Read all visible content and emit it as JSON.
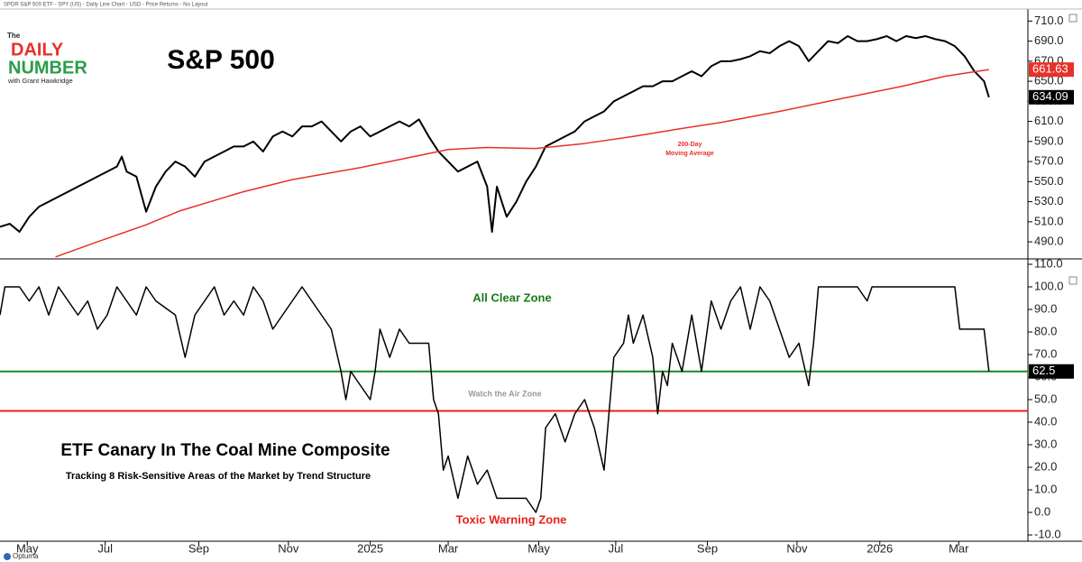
{
  "header": "SPDR S&P 500 ETF - SPY (US) - Daily Line Chart - USD - Price Returns - No Layout",
  "logo": {
    "top": "The",
    "line1": "DAILY",
    "line2": "NUMBER",
    "byline": "with Grant Hawkridge"
  },
  "footer": "Optuma",
  "chart_data": [
    {
      "type": "line",
      "title": "S&P 500",
      "annotations": [
        {
          "text": "200-Day",
          "color": "#e8302a"
        },
        {
          "text": "Moving Average",
          "color": "#e8302a"
        }
      ],
      "xlim": [
        0,
        105.5
      ],
      "ylim": [
        473,
        722
      ],
      "yticks": [
        {
          "value": 710,
          "label": "710.0"
        },
        {
          "value": 690,
          "label": "690.0"
        },
        {
          "value": 670,
          "label": "670.0"
        },
        {
          "value": 650,
          "label": "650.0"
        },
        {
          "value": 630,
          "label": "630.0"
        },
        {
          "value": 610,
          "label": "610.0"
        },
        {
          "value": 590,
          "label": "590.0"
        },
        {
          "value": 570,
          "label": "570.0"
        },
        {
          "value": 550,
          "label": "550.0"
        },
        {
          "value": 530,
          "label": "530.0"
        },
        {
          "value": 510,
          "label": "510.0"
        },
        {
          "value": 490,
          "label": "490.0"
        }
      ],
      "series": [
        {
          "name": "SPY",
          "color": "#000000",
          "x": [
            0,
            1,
            2,
            3,
            4,
            5,
            6,
            7,
            8,
            9,
            10,
            11,
            12,
            12.5,
            13,
            14,
            15,
            16,
            17,
            18,
            19,
            20,
            21,
            22,
            23,
            24,
            25,
            26,
            27,
            28,
            29,
            30,
            31,
            32,
            33,
            34,
            35,
            36,
            37,
            38,
            39,
            40,
            41,
            42,
            43,
            44,
            45,
            46,
            47,
            48,
            49,
            50,
            50.5,
            51,
            52,
            53,
            54,
            55,
            56,
            57,
            58,
            59,
            60,
            61,
            62,
            63,
            64,
            65,
            66,
            67,
            68,
            69,
            70,
            71,
            72,
            73,
            74,
            75,
            76,
            77,
            78,
            79,
            80,
            81,
            82,
            83,
            84,
            85,
            86,
            87,
            88,
            89,
            90,
            91,
            92,
            93,
            94,
            95,
            96,
            97,
            98,
            99,
            100,
            101,
            101.5
          ],
          "values": [
            505,
            508,
            500,
            515,
            525,
            530,
            535,
            540,
            545,
            550,
            555,
            560,
            565,
            575,
            560,
            555,
            520,
            545,
            560,
            570,
            565,
            555,
            570,
            575,
            580,
            585,
            585,
            590,
            580,
            595,
            600,
            595,
            605,
            605,
            610,
            600,
            590,
            600,
            605,
            595,
            600,
            605,
            610,
            605,
            612,
            595,
            580,
            570,
            560,
            565,
            570,
            545,
            500,
            545,
            515,
            530,
            550,
            565,
            585,
            590,
            595,
            600,
            610,
            615,
            620,
            630,
            635,
            640,
            645,
            645,
            650,
            650,
            655,
            660,
            655,
            665,
            670,
            670,
            672,
            675,
            680,
            678,
            685,
            690,
            685,
            670,
            680,
            690,
            688,
            695,
            690,
            690,
            692,
            695,
            690,
            695,
            693,
            695,
            692,
            690,
            685,
            675,
            660,
            650,
            634.09
          ]
        },
        {
          "name": "200-Day Moving Average",
          "color": "#e8302a",
          "x": [
            5.7,
            10,
            15,
            18.5,
            25,
            30,
            37,
            42,
            46,
            50,
            55,
            60,
            65,
            70,
            74,
            80,
            86,
            92.6,
            97,
            101.5
          ],
          "values": [
            475,
            490,
            507,
            521,
            540,
            552,
            564,
            574,
            582,
            584,
            583,
            588,
            595,
            603,
            609,
            620,
            632,
            645,
            655,
            661.63
          ]
        }
      ]
    },
    {
      "type": "line",
      "title": "ETF Canary In The Coal Mine Composite",
      "subtitle": "Tracking 8 Risk-Sensitive Areas of the Market by Trend Structure",
      "annotations": [
        {
          "text": "All Clear Zone",
          "color": "#1a7a1a"
        },
        {
          "text": "Watch the Air Zone",
          "color": "#999999"
        },
        {
          "text": "Toxic Warning Zone",
          "color": "#e8201a"
        }
      ],
      "reference_lines": [
        {
          "value": 62.5,
          "color": "#1a8a1a"
        },
        {
          "value": 45,
          "color": "#e8201a"
        }
      ],
      "xlim": [
        0,
        105.5
      ],
      "xticks": [
        {
          "value": 2.8,
          "label": "May"
        },
        {
          "value": 10.8,
          "label": "Jul"
        },
        {
          "value": 20.4,
          "label": "Sep"
        },
        {
          "value": 29.6,
          "label": "Nov"
        },
        {
          "value": 38,
          "label": "2025"
        },
        {
          "value": 46,
          "label": "Mar"
        },
        {
          "value": 55.3,
          "label": "May"
        },
        {
          "value": 63.2,
          "label": "Jul"
        },
        {
          "value": 72.6,
          "label": "Sep"
        },
        {
          "value": 81.8,
          "label": "Nov"
        },
        {
          "value": 90.3,
          "label": "2026"
        },
        {
          "value": 98.4,
          "label": "Mar"
        }
      ],
      "ylim": [
        -12.8,
        112.4
      ],
      "yticks": [
        {
          "value": 110,
          "label": "110.0"
        },
        {
          "value": 100,
          "label": "100.0"
        },
        {
          "value": 90,
          "label": "90.0"
        },
        {
          "value": 80,
          "label": "80.0"
        },
        {
          "value": 70,
          "label": "70.0"
        },
        {
          "value": 60,
          "label": "60.0"
        },
        {
          "value": 50,
          "label": "50.0"
        },
        {
          "value": 40,
          "label": "40.0"
        },
        {
          "value": 30,
          "label": "30.0"
        },
        {
          "value": 20,
          "label": "20.0"
        },
        {
          "value": 10,
          "label": "10.0"
        },
        {
          "value": 0,
          "label": "0.0"
        },
        {
          "value": -10,
          "label": "-10.0"
        }
      ],
      "series": [
        {
          "name": "Composite",
          "color": "#000000",
          "x": [
            0,
            0.5,
            2,
            3,
            4,
            5,
            6,
            7,
            8,
            9,
            10,
            11,
            12,
            13,
            14,
            15,
            16,
            18,
            19,
            20,
            21,
            22,
            23,
            24,
            25,
            26,
            27,
            28,
            29,
            30,
            31,
            32,
            33,
            34,
            35,
            35.5,
            36,
            37,
            38,
            38.5,
            39,
            40,
            41,
            42,
            43,
            44,
            44.5,
            45,
            45.5,
            46,
            47,
            48,
            49,
            50,
            51,
            52,
            54,
            55,
            55.5,
            56,
            57,
            58,
            59,
            60,
            61,
            62,
            63,
            64,
            64.5,
            65,
            66,
            67,
            67.5,
            68,
            68.5,
            69,
            70,
            71,
            72,
            73,
            74,
            75,
            76,
            77,
            78,
            79,
            80,
            81,
            82,
            83,
            83.5,
            84,
            85,
            88,
            89,
            89.5,
            98,
            98.5,
            101,
            101.5
          ],
          "values": [
            87.5,
            100,
            100,
            93.75,
            100,
            87.5,
            100,
            93.75,
            87.5,
            93.75,
            81.25,
            87.5,
            100,
            93.75,
            87.5,
            100,
            93.75,
            87.5,
            68.75,
            87.5,
            93.75,
            100,
            87.5,
            93.75,
            87.5,
            100,
            93.75,
            81.25,
            87.5,
            93.75,
            100,
            93.75,
            87.5,
            81.25,
            62.5,
            50,
            62.5,
            56.25,
            50,
            62.5,
            81.25,
            68.75,
            81.25,
            75,
            75,
            75,
            50,
            43.75,
            18.75,
            25,
            6.25,
            25,
            12.5,
            18.75,
            6.25,
            6.25,
            6.25,
            0,
            6.25,
            37.5,
            43.75,
            31.25,
            43.75,
            50,
            37.5,
            18.75,
            68.75,
            75,
            87.5,
            75,
            87.5,
            68.75,
            43.75,
            62.5,
            56.25,
            75,
            62.5,
            87.5,
            62.5,
            93.75,
            81.25,
            93.75,
            100,
            81.25,
            100,
            93.75,
            81.25,
            68.75,
            75,
            56.25,
            75,
            100,
            100,
            100,
            93.75,
            100,
            100,
            81.25,
            81.25,
            62.5
          ]
        }
      ]
    }
  ]
}
